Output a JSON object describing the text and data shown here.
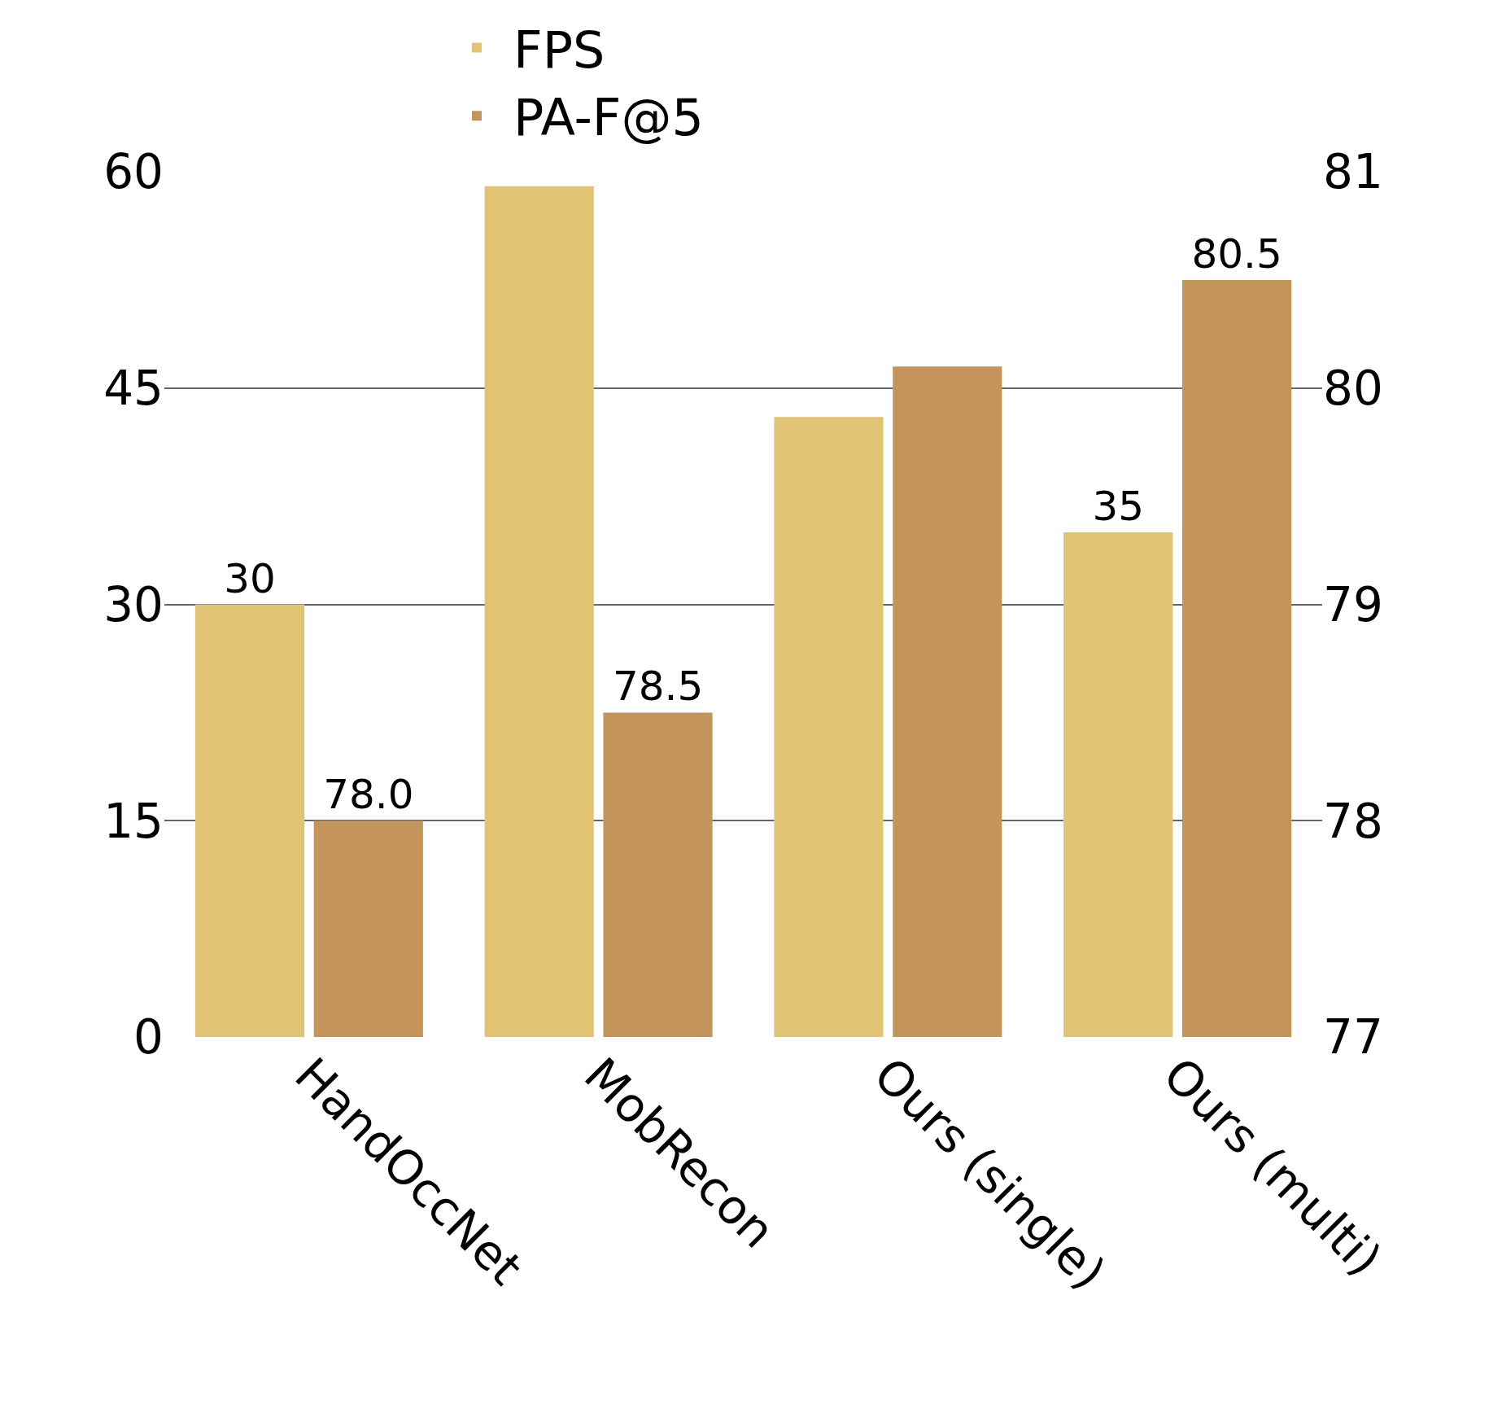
{
  "chart_data": {
    "type": "bar",
    "categories": [
      "HandOccNet",
      "MobRecon",
      "Ours (single)",
      "Ours (multi)"
    ],
    "series": [
      {
        "name": "FPS",
        "color": "#e0c474",
        "values": [
          30,
          59,
          43,
          35
        ],
        "value_labels": [
          "30",
          null,
          null,
          "35"
        ]
      },
      {
        "name": "PA-F@5",
        "color": "#c4955a",
        "values": [
          78.0,
          78.5,
          80.1,
          80.5
        ],
        "value_labels": [
          "78.0",
          "78.5",
          null,
          "80.5"
        ],
        "axis": "y2"
      }
    ],
    "ylim": [
      0,
      60
    ],
    "yticks": [
      0,
      15,
      30,
      45,
      60
    ],
    "y2lim": [
      77,
      81
    ],
    "y2ticks": [
      77,
      78,
      79,
      80,
      81
    ],
    "grid": "y",
    "legend": "top"
  }
}
